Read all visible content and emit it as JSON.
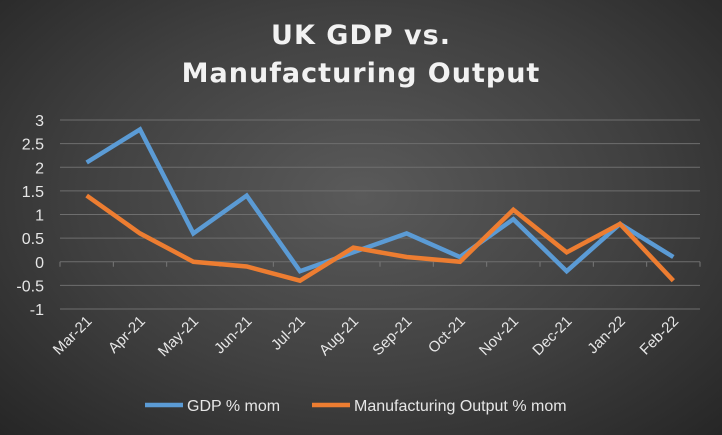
{
  "chart_data": {
    "type": "line",
    "title_line1": "UK GDP vs.",
    "title_line2": "Manufacturing Output",
    "xlabel": "",
    "ylabel": "",
    "categories": [
      "Mar-21",
      "Apr-21",
      "May-21",
      "Jun-21",
      "Jul-21",
      "Aug-21",
      "Sep-21",
      "Oct-21",
      "Nov-21",
      "Dec-21",
      "Jan-22",
      "Feb-22"
    ],
    "ylim": [
      -1,
      3
    ],
    "yticks": [
      "-1",
      "-0.5",
      "0",
      "0.5",
      "1",
      "1.5",
      "2",
      "2.5",
      "3"
    ],
    "grid": true,
    "legend": "bottom",
    "series": [
      {
        "name": "GDP % mom",
        "color": "#5b9bd5",
        "values": [
          2.1,
          2.8,
          0.6,
          1.4,
          -0.2,
          0.2,
          0.6,
          0.1,
          0.9,
          -0.2,
          0.8,
          0.1
        ]
      },
      {
        "name": "Manufacturing Output % mom",
        "color": "#ed7d31",
        "values": [
          1.4,
          0.6,
          0.0,
          -0.1,
          -0.4,
          0.3,
          0.1,
          0.0,
          1.1,
          0.2,
          0.8,
          -0.4
        ]
      }
    ]
  }
}
